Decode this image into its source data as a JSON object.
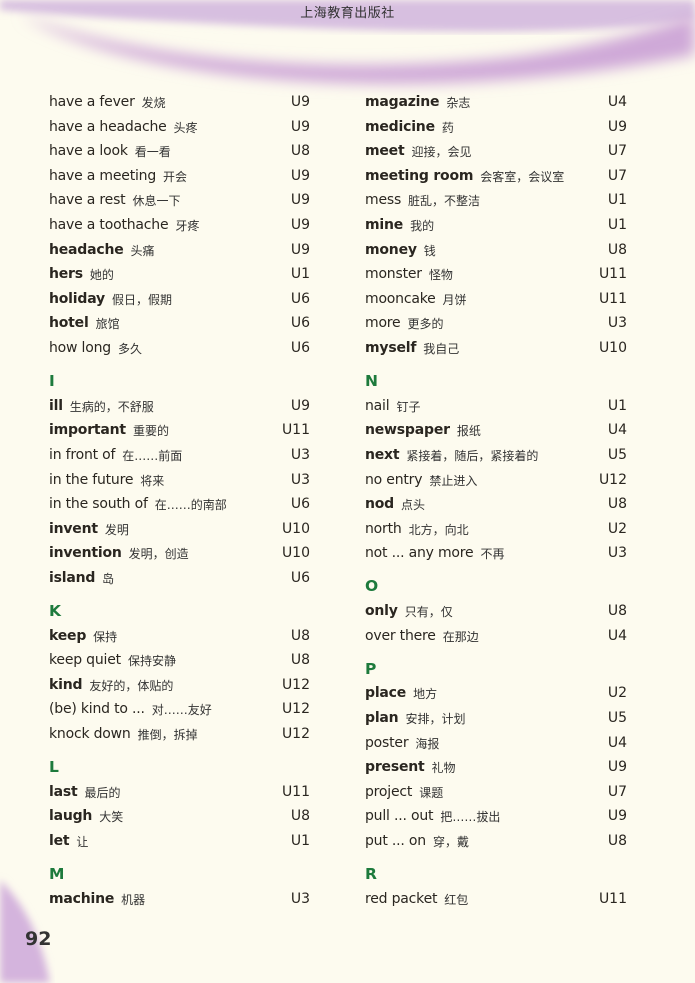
{
  "header": {
    "publisher": "上海教育出版社"
  },
  "page_number": "92",
  "colors": {
    "letter_heading": "#1d7a3c",
    "swoosh": "#c9a3d6",
    "background": "#fdfbef"
  },
  "columns": [
    {
      "sections": [
        {
          "letter": "",
          "entries": [
            {
              "en": "have a fever",
              "zh": "发烧",
              "unit": "U9",
              "bold": false
            },
            {
              "en": "have a headache",
              "zh": "头疼",
              "unit": "U9",
              "bold": false
            },
            {
              "en": "have a look",
              "zh": "看一看",
              "unit": "U8",
              "bold": false
            },
            {
              "en": "have a meeting",
              "zh": "开会",
              "unit": "U9",
              "bold": false
            },
            {
              "en": "have a rest",
              "zh": "休息一下",
              "unit": "U9",
              "bold": false
            },
            {
              "en": "have a toothache",
              "zh": "牙疼",
              "unit": "U9",
              "bold": false
            },
            {
              "en": "headache",
              "zh": "头痛",
              "unit": "U9",
              "bold": true
            },
            {
              "en": "hers",
              "zh": "她的",
              "unit": "U1",
              "bold": true
            },
            {
              "en": "holiday",
              "zh": "假日，假期",
              "unit": "U6",
              "bold": true
            },
            {
              "en": "hotel",
              "zh": "旅馆",
              "unit": "U6",
              "bold": true
            },
            {
              "en": "how long",
              "zh": "多久",
              "unit": "U6",
              "bold": false
            }
          ]
        },
        {
          "letter": "I",
          "entries": [
            {
              "en": "ill",
              "zh": "生病的，不舒服",
              "unit": "U9",
              "bold": true
            },
            {
              "en": "important",
              "zh": "重要的",
              "unit": "U11",
              "bold": true
            },
            {
              "en": "in front of",
              "zh": "在……前面",
              "unit": "U3",
              "bold": false
            },
            {
              "en": "in the future",
              "zh": "将来",
              "unit": "U3",
              "bold": false
            },
            {
              "en": "in the south of",
              "zh": "在……的南部",
              "unit": "U6",
              "bold": false
            },
            {
              "en": "invent",
              "zh": "发明",
              "unit": "U10",
              "bold": true
            },
            {
              "en": "invention",
              "zh": "发明，创造",
              "unit": "U10",
              "bold": true
            },
            {
              "en": "island",
              "zh": "岛",
              "unit": "U6",
              "bold": true
            }
          ]
        },
        {
          "letter": "K",
          "entries": [
            {
              "en": "keep",
              "zh": "保持",
              "unit": "U8",
              "bold": true
            },
            {
              "en": "keep quiet",
              "zh": "保持安静",
              "unit": "U8",
              "bold": false
            },
            {
              "en": "kind",
              "zh": "友好的，体贴的",
              "unit": "U12",
              "bold": true
            },
            {
              "en": "(be) kind to ...",
              "zh": "对……友好",
              "unit": "U12",
              "bold": false
            },
            {
              "en": "knock down",
              "zh": "推倒，拆掉",
              "unit": "U12",
              "bold": false
            }
          ]
        },
        {
          "letter": "L",
          "entries": [
            {
              "en": "last",
              "zh": "最后的",
              "unit": "U11",
              "bold": true
            },
            {
              "en": "laugh",
              "zh": "大笑",
              "unit": "U8",
              "bold": true
            },
            {
              "en": "let",
              "zh": "让",
              "unit": "U1",
              "bold": true
            }
          ]
        },
        {
          "letter": "M",
          "entries": [
            {
              "en": "machine",
              "zh": "机器",
              "unit": "U3",
              "bold": true
            }
          ]
        }
      ]
    },
    {
      "sections": [
        {
          "letter": "",
          "entries": [
            {
              "en": "magazine",
              "zh": "杂志",
              "unit": "U4",
              "bold": true
            },
            {
              "en": "medicine",
              "zh": "药",
              "unit": "U9",
              "bold": true
            },
            {
              "en": "meet",
              "zh": "迎接，会见",
              "unit": "U7",
              "bold": true
            },
            {
              "en": "meeting room",
              "zh": "会客室，会议室",
              "unit": "U7",
              "bold": true
            },
            {
              "en": "mess",
              "zh": "脏乱，不整洁",
              "unit": "U1",
              "bold": false
            },
            {
              "en": "mine",
              "zh": "我的",
              "unit": "U1",
              "bold": true
            },
            {
              "en": "money",
              "zh": "钱",
              "unit": "U8",
              "bold": true
            },
            {
              "en": "monster",
              "zh": "怪物",
              "unit": "U11",
              "bold": false
            },
            {
              "en": "mooncake",
              "zh": "月饼",
              "unit": "U11",
              "bold": false
            },
            {
              "en": "more",
              "zh": "更多的",
              "unit": "U3",
              "bold": false
            },
            {
              "en": "myself",
              "zh": "我自己",
              "unit": "U10",
              "bold": true
            }
          ]
        },
        {
          "letter": "N",
          "entries": [
            {
              "en": "nail",
              "zh": "钉子",
              "unit": "U1",
              "bold": false
            },
            {
              "en": "newspaper",
              "zh": "报纸",
              "unit": "U4",
              "bold": true
            },
            {
              "en": "next",
              "zh": "紧接着，随后，紧接着的",
              "unit": "U5",
              "bold": true
            },
            {
              "en": "no entry",
              "zh": "禁止进入",
              "unit": "U12",
              "bold": false
            },
            {
              "en": "nod",
              "zh": "点头",
              "unit": "U8",
              "bold": true
            },
            {
              "en": "north",
              "zh": "北方，向北",
              "unit": "U2",
              "bold": false
            },
            {
              "en": "not ... any more",
              "zh": "不再",
              "unit": "U3",
              "bold": false
            }
          ]
        },
        {
          "letter": "O",
          "entries": [
            {
              "en": "only",
              "zh": "只有，仅",
              "unit": "U8",
              "bold": true
            },
            {
              "en": "over there",
              "zh": "在那边",
              "unit": "U4",
              "bold": false
            }
          ]
        },
        {
          "letter": "P",
          "entries": [
            {
              "en": "place",
              "zh": "地方",
              "unit": "U2",
              "bold": true
            },
            {
              "en": "plan",
              "zh": "安排，计划",
              "unit": "U5",
              "bold": true
            },
            {
              "en": "poster",
              "zh": "海报",
              "unit": "U4",
              "bold": false
            },
            {
              "en": "present",
              "zh": "礼物",
              "unit": "U9",
              "bold": true
            },
            {
              "en": "project",
              "zh": "课题",
              "unit": "U7",
              "bold": false
            },
            {
              "en": "pull ... out",
              "zh": "把……拔出",
              "unit": "U9",
              "bold": false
            },
            {
              "en": "put ... on",
              "zh": "穿，戴",
              "unit": "U8",
              "bold": false
            }
          ]
        },
        {
          "letter": "R",
          "entries": [
            {
              "en": "red packet",
              "zh": "红包",
              "unit": "U11",
              "bold": false
            }
          ]
        }
      ]
    }
  ]
}
